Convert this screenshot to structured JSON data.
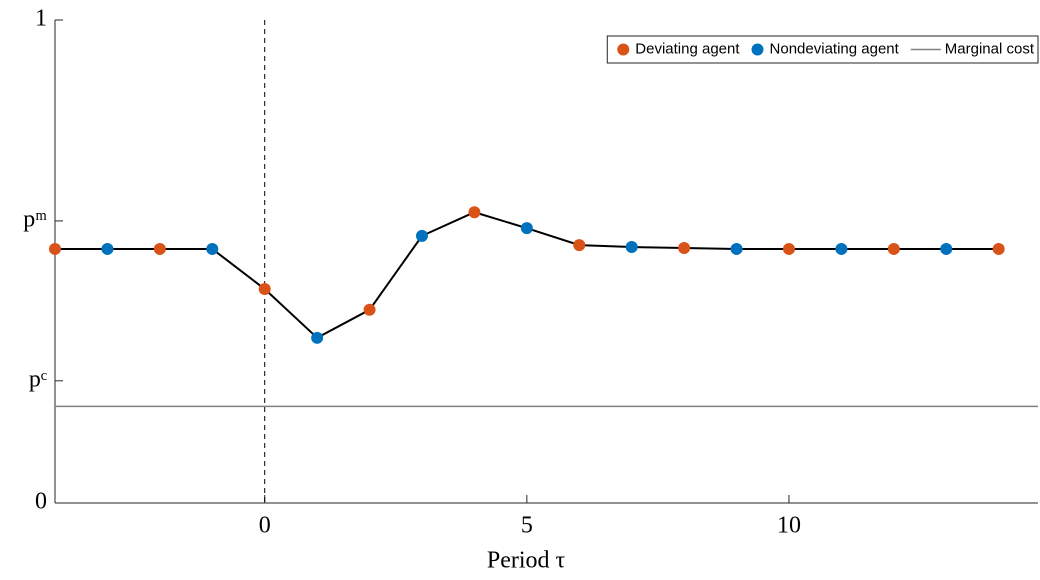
{
  "chart_data": {
    "type": "line",
    "xlabel": "Period τ",
    "x": [
      -4,
      -3,
      -2,
      -1,
      0,
      1,
      2,
      3,
      4,
      5,
      6,
      7,
      8,
      9,
      10,
      11,
      12,
      13,
      14
    ],
    "values": [
      0.526,
      0.526,
      0.526,
      0.526,
      0.443,
      0.342,
      0.4,
      0.553,
      0.602,
      0.569,
      0.534,
      0.53,
      0.528,
      0.526,
      0.526,
      0.526,
      0.526,
      0.526,
      0.526
    ],
    "line_color": "#000000",
    "series": [
      {
        "name": "Deviating agent",
        "color": "#d95319",
        "x": [
          -4,
          -2,
          0,
          2,
          4,
          6,
          8,
          10,
          12,
          14
        ],
        "values": [
          0.526,
          0.526,
          0.443,
          0.4,
          0.602,
          0.534,
          0.528,
          0.526,
          0.526,
          0.526
        ]
      },
      {
        "name": "Nondeviating agent",
        "color": "#0072bd",
        "x": [
          -3,
          -1,
          1,
          3,
          5,
          7,
          9,
          11,
          13
        ],
        "values": [
          0.526,
          0.526,
          0.342,
          0.553,
          0.569,
          0.53,
          0.526,
          0.526,
          0.526
        ]
      }
    ],
    "reference_line": {
      "name": "Marginal cost",
      "value": 0.2,
      "color": "#808080"
    },
    "vline": 0,
    "xlim": [
      -4,
      14.75
    ],
    "ylim": [
      0,
      1
    ],
    "xticks": [
      0,
      5,
      10
    ],
    "yticks": [
      0,
      {
        "value": 0.253,
        "label": "pᶜ"
      },
      {
        "value": 0.584,
        "label": "pᵐ"
      },
      1
    ],
    "legend": "upper right"
  }
}
